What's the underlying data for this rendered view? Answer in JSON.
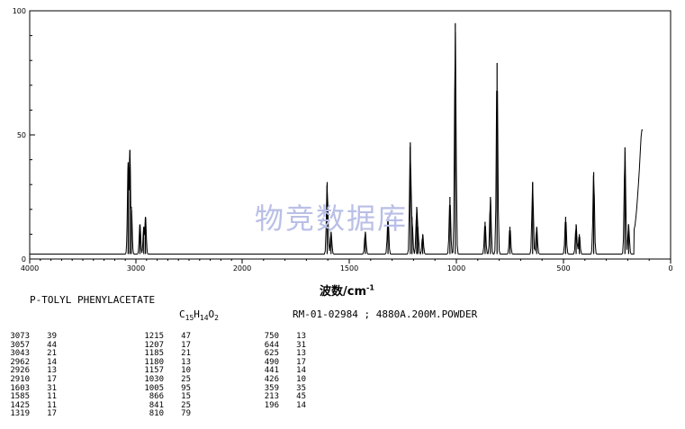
{
  "chart_data": {
    "type": "line",
    "xlabel": "波数/cm",
    "xlabel_sup": "-1",
    "xlim": [
      4000,
      0
    ],
    "ylim": [
      0,
      100
    ],
    "x_ticks": [
      4000,
      3000,
      2000,
      1500,
      1000,
      500,
      0
    ],
    "y_ticks": [
      0,
      50,
      100
    ],
    "y_tick_labels": [
      "0",
      "50",
      "100"
    ],
    "grid": false,
    "peaks": [
      {
        "x": 3073,
        "y": 39
      },
      {
        "x": 3057,
        "y": 44
      },
      {
        "x": 3043,
        "y": 21
      },
      {
        "x": 2962,
        "y": 14
      },
      {
        "x": 2926,
        "y": 13
      },
      {
        "x": 2910,
        "y": 17
      },
      {
        "x": 1603,
        "y": 31
      },
      {
        "x": 1585,
        "y": 11
      },
      {
        "x": 1425,
        "y": 11
      },
      {
        "x": 1319,
        "y": 17
      },
      {
        "x": 1215,
        "y": 47
      },
      {
        "x": 1207,
        "y": 17
      },
      {
        "x": 1185,
        "y": 21
      },
      {
        "x": 1180,
        "y": 13
      },
      {
        "x": 1157,
        "y": 10
      },
      {
        "x": 1030,
        "y": 25
      },
      {
        "x": 1005,
        "y": 95
      },
      {
        "x": 866,
        "y": 15
      },
      {
        "x": 841,
        "y": 25
      },
      {
        "x": 810,
        "y": 79
      },
      {
        "x": 750,
        "y": 13
      },
      {
        "x": 644,
        "y": 31
      },
      {
        "x": 625,
        "y": 13
      },
      {
        "x": 490,
        "y": 17
      },
      {
        "x": 441,
        "y": 14
      },
      {
        "x": 426,
        "y": 10
      },
      {
        "x": 359,
        "y": 35
      },
      {
        "x": 213,
        "y": 45
      },
      {
        "x": 196,
        "y": 14
      }
    ]
  },
  "watermark": "物竞数据库",
  "compound_name": "P-TOLYL PHENYLACETATE",
  "formula": {
    "c": "C",
    "c_n": "15",
    "h": "H",
    "h_n": "14",
    "o": "O",
    "o_n": "2"
  },
  "catalog_info": "RM-01-02984 ; 4880A.200M.POWDER",
  "peak_table": [
    [
      [
        "3073",
        "39"
      ],
      [
        "3057",
        "44"
      ],
      [
        "3043",
        "21"
      ],
      [
        "2962",
        "14"
      ],
      [
        "2926",
        "13"
      ],
      [
        "2910",
        "17"
      ],
      [
        "1603",
        "31"
      ],
      [
        "1585",
        "11"
      ],
      [
        "1425",
        "11"
      ],
      [
        "1319",
        "17"
      ]
    ],
    [
      [
        "1215",
        "47"
      ],
      [
        "1207",
        "17"
      ],
      [
        "1185",
        "21"
      ],
      [
        "1180",
        "13"
      ],
      [
        "1157",
        "10"
      ],
      [
        "1030",
        "25"
      ],
      [
        "1005",
        "95"
      ],
      [
        "866",
        "15"
      ],
      [
        "841",
        "25"
      ],
      [
        "810",
        "79"
      ]
    ],
    [
      [
        "750",
        "13"
      ],
      [
        "644",
        "31"
      ],
      [
        "625",
        "13"
      ],
      [
        "490",
        "17"
      ],
      [
        "441",
        "14"
      ],
      [
        "426",
        "10"
      ],
      [
        "359",
        "35"
      ],
      [
        "213",
        "45"
      ],
      [
        "196",
        "14"
      ]
    ]
  ]
}
